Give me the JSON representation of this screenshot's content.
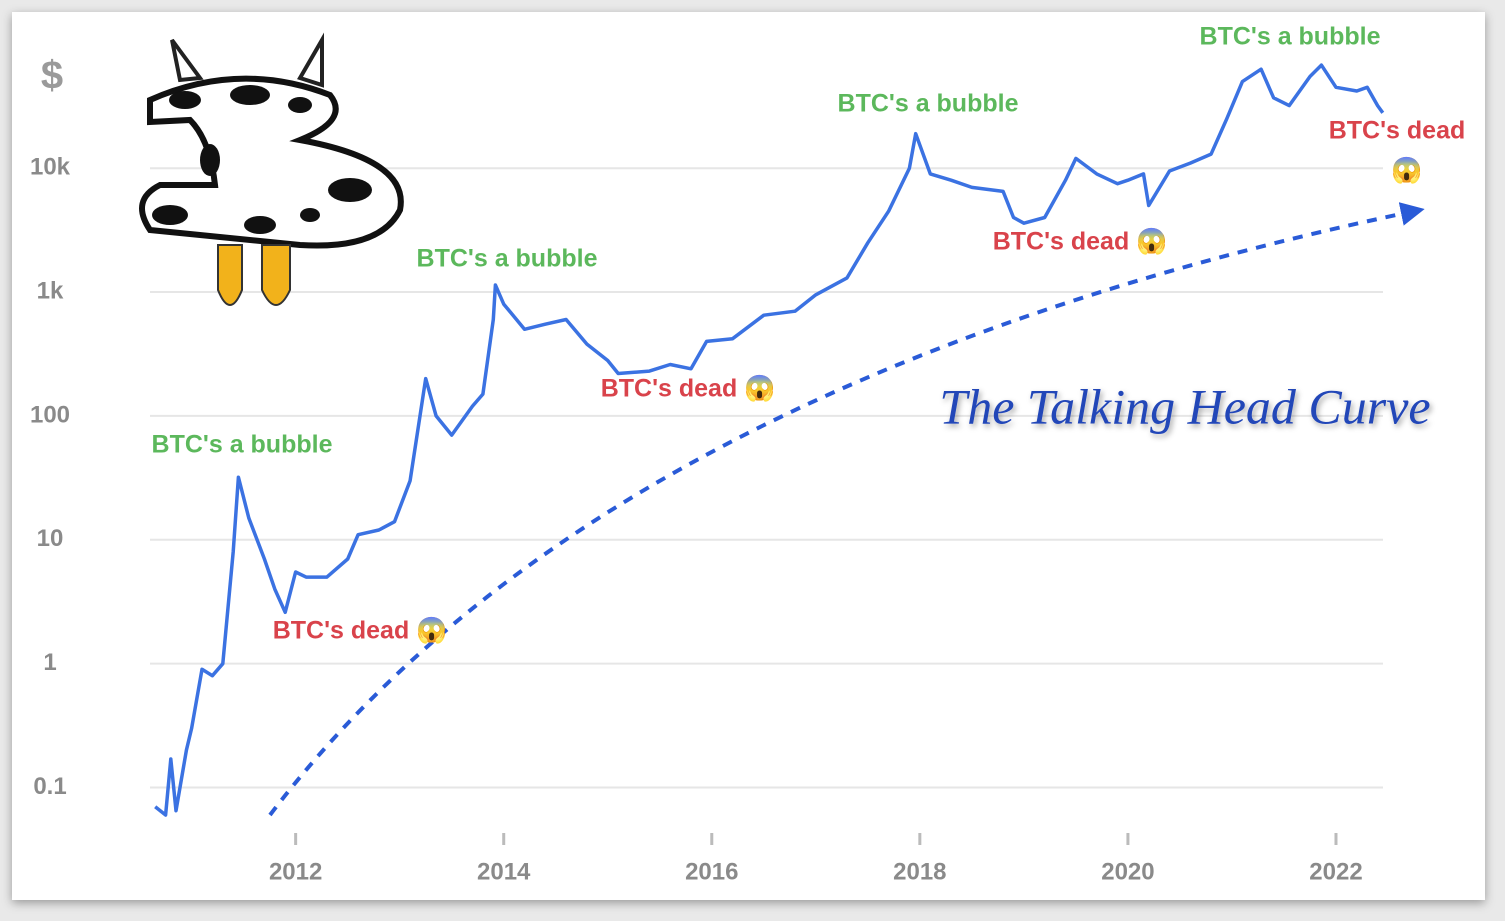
{
  "chart_data": {
    "type": "line",
    "y_label": "$",
    "log_y": true,
    "grid": true,
    "xlim": [
      2010.6,
      2022.5
    ],
    "xticks": [
      2012,
      2014,
      2016,
      2018,
      2020,
      2022
    ],
    "ylim": [
      0.06,
      90000
    ],
    "yticks": [
      0.1,
      1,
      10,
      100,
      {
        "value": 1000,
        "label": "1k"
      },
      {
        "value": 10000,
        "label": "10k"
      }
    ],
    "series": [
      {
        "color": "#3b72e2",
        "x": [
          2010.65,
          2010.75,
          2010.8,
          2010.85,
          2010.95,
          2011.0,
          2011.1,
          2011.2,
          2011.3,
          2011.4,
          2011.45,
          2011.55,
          2011.7,
          2011.8,
          2011.9,
          2012.0,
          2012.1,
          2012.3,
          2012.5,
          2012.6,
          2012.8,
          2012.95,
          2013.1,
          2013.25,
          2013.35,
          2013.5,
          2013.7,
          2013.8,
          2013.9,
          2013.92,
          2014.0,
          2014.2,
          2014.4,
          2014.6,
          2014.8,
          2015.0,
          2015.1,
          2015.4,
          2015.6,
          2015.8,
          2015.95,
          2016.2,
          2016.5,
          2016.8,
          2017.0,
          2017.3,
          2017.5,
          2017.7,
          2017.9,
          2017.96,
          2018.1,
          2018.3,
          2018.5,
          2018.8,
          2018.9,
          2019.0,
          2019.2,
          2019.4,
          2019.5,
          2019.7,
          2019.9,
          2020.0,
          2020.15,
          2020.2,
          2020.4,
          2020.6,
          2020.8,
          2020.95,
          2021.1,
          2021.28,
          2021.4,
          2021.55,
          2021.75,
          2021.86,
          2022.0,
          2022.2,
          2022.3,
          2022.4,
          2022.45
        ],
        "values": [
          0.07,
          0.06,
          0.17,
          0.065,
          0.2,
          0.3,
          0.9,
          0.8,
          1.0,
          8,
          32,
          15,
          7,
          4,
          2.6,
          5.5,
          5,
          5,
          7,
          11,
          12,
          14,
          30,
          200,
          100,
          70,
          120,
          150,
          600,
          1140,
          800,
          500,
          550,
          600,
          380,
          280,
          220,
          230,
          260,
          240,
          400,
          420,
          650,
          700,
          950,
          1300,
          2500,
          4500,
          10000,
          19000,
          9000,
          8000,
          7000,
          6500,
          4000,
          3600,
          4000,
          8000,
          12000,
          9000,
          7500,
          8000,
          9000,
          5000,
          9500,
          11000,
          13000,
          25000,
          50000,
          63000,
          37000,
          32000,
          55000,
          68000,
          45000,
          42000,
          45000,
          32000,
          28000
        ]
      }
    ],
    "annotations": [
      {
        "text": "BTC's a bubble",
        "color": "#5cb85c"
      },
      {
        "text": "BTC's dead 😱",
        "color": "#d9434b"
      },
      {
        "text": "BTC's a bubble",
        "color": "#5cb85c"
      },
      {
        "text": "BTC's dead 😱",
        "color": "#d9434b"
      },
      {
        "text": "BTC's a bubble",
        "color": "#5cb85c"
      },
      {
        "text": "BTC's dead 😱",
        "color": "#d9434b"
      },
      {
        "text": "BTC's a bubble",
        "color": "#5cb85c"
      },
      {
        "text": "BTC's dead",
        "color": "#d9434b"
      },
      {
        "text": "😱",
        "color": "#d9434b"
      }
    ],
    "curve_label": "The Talking Head Curve"
  }
}
